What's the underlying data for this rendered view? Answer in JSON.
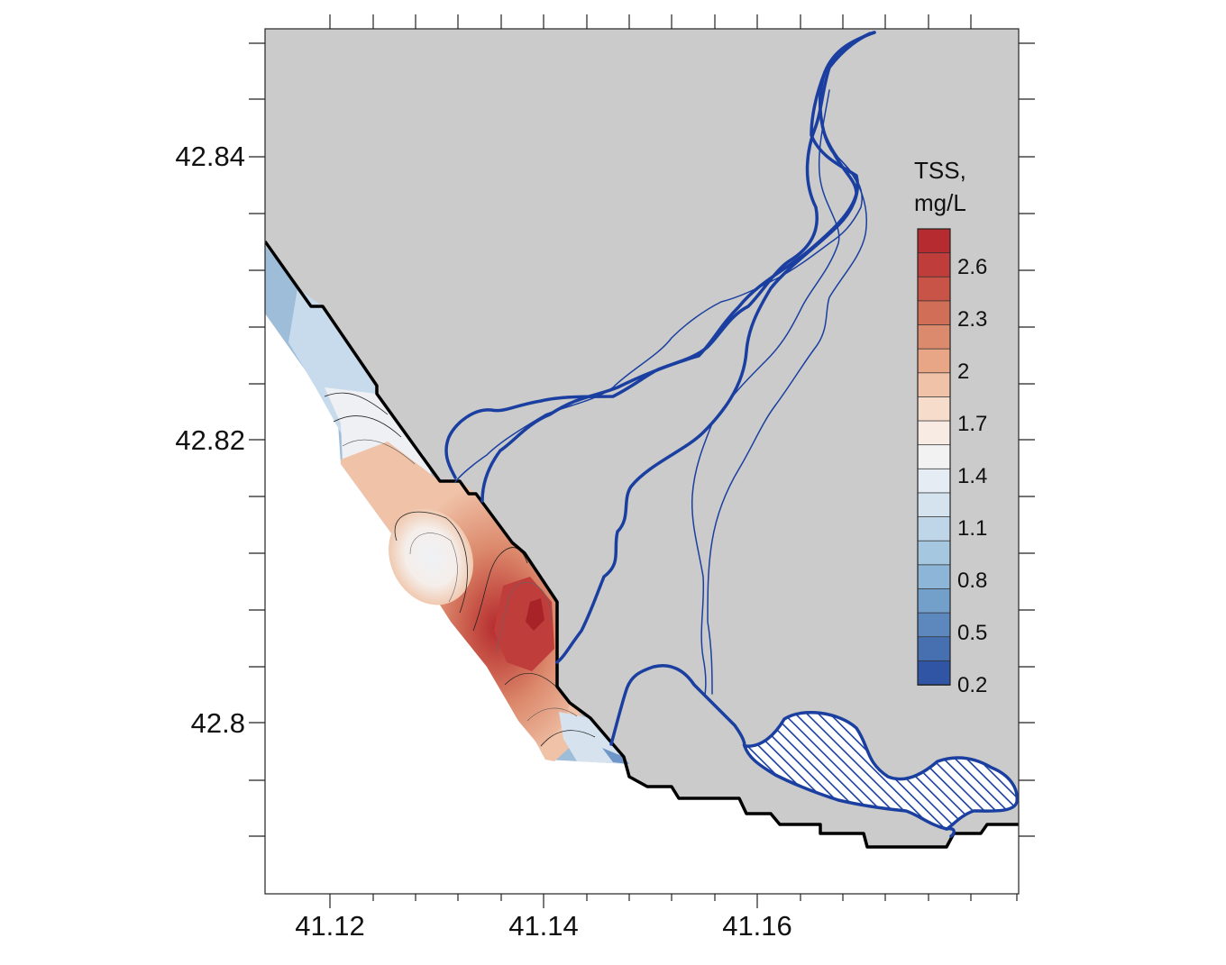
{
  "map": {
    "colors": {
      "land": "#cbcbcb",
      "sea": "#ffffff",
      "coastline": "#000000",
      "river": "#1a3fa0",
      "hatch": "#1a3fa0"
    },
    "y_axis": {
      "ticks": [
        "42.84",
        "42.82",
        "42.8"
      ]
    },
    "x_axis": {
      "ticks": [
        "41.12",
        "41.14",
        "41.16"
      ]
    },
    "legend": {
      "title_line1": "TSS,",
      "title_line2": "mg/L",
      "labels": [
        "2.6",
        "2.3",
        "2",
        "1.7",
        "1.4",
        "1.1",
        "0.8",
        "0.5",
        "0.2"
      ],
      "colors": [
        "#b52b2f",
        "#bf3d3a",
        "#c75447",
        "#d16e57",
        "#dc8a6d",
        "#e8a686",
        "#f0c2a8",
        "#f6dcca",
        "#f7ebe4",
        "#f2f2f2",
        "#e6ecf3",
        "#d5e3ef",
        "#bfd5e8",
        "#a6c7e0",
        "#8cb5d8",
        "#739fcb",
        "#5c88be",
        "#4670b0",
        "#2f55a4"
      ]
    }
  }
}
